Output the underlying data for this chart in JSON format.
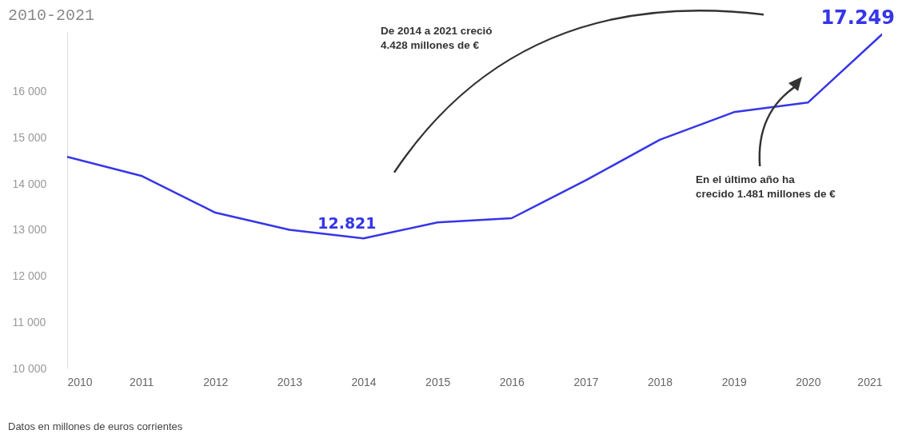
{
  "chart_data": {
    "type": "line",
    "title": "2010-2021",
    "x": [
      2010,
      2011,
      2012,
      2013,
      2014,
      2015,
      2016,
      2017,
      2018,
      2019,
      2020,
      2021
    ],
    "series": [
      {
        "color": "#3535e8",
        "values": [
          14590,
          14180,
          13380,
          13010,
          12821,
          13170,
          13260,
          14080,
          14960,
          15560,
          15768,
          17249
        ]
      }
    ],
    "xlim": [
      2010,
      2021
    ],
    "xticks": [
      2010,
      2011,
      2012,
      2013,
      2014,
      2015,
      2016,
      2017,
      2018,
      2019,
      2020,
      2021
    ],
    "ylim": [
      10000,
      17300
    ],
    "yticks": [
      {
        "value": 10000,
        "label": "10 000"
      },
      {
        "value": 11000,
        "label": "11 000"
      },
      {
        "value": 12000,
        "label": "12 000"
      },
      {
        "value": 13000,
        "label": "13 000"
      },
      {
        "value": 14000,
        "label": "14 000"
      },
      {
        "value": 15000,
        "label": "15 000"
      },
      {
        "value": 16000,
        "label": "16 000"
      }
    ],
    "grid": false,
    "marker": "none",
    "line_style": "solid",
    "annotations": [
      {
        "text": "12.821",
        "x": 2014,
        "y": 12821
      },
      {
        "text": "17.249",
        "x": 2021,
        "y": 17249
      },
      "De 2014 a 2021 creció 4.428 millones de €",
      "En el último año ha crecido 1.481 millones de €",
      "Datos en millones de euros corrientes"
    ]
  }
}
